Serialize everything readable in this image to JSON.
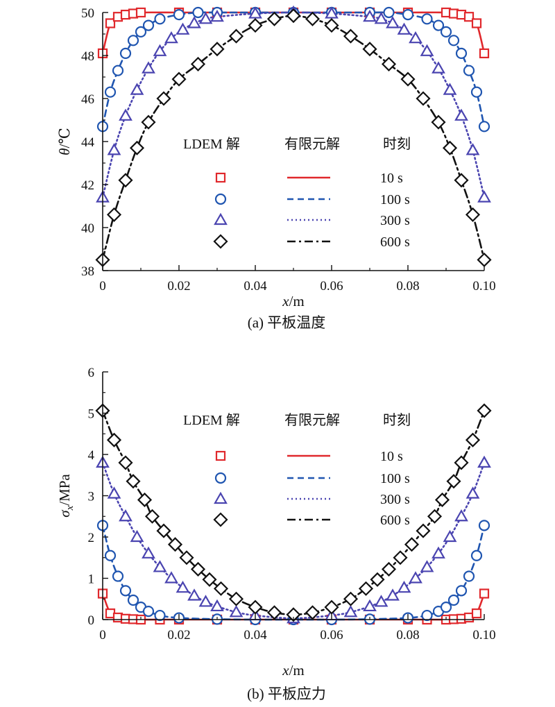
{
  "chart_data": [
    {
      "type": "line",
      "caption": "(a) 平板温度",
      "xlabel_var": "x",
      "xlabel_unit": "/m",
      "ylabel_var": "θ",
      "ylabel_unit": "/℃",
      "xlim": [
        0,
        0.1
      ],
      "ylim": [
        38,
        50
      ],
      "x_ticks": [
        "0",
        "0.02",
        "0.04",
        "0.06",
        "0.08",
        "0.10"
      ],
      "y_ticks": [
        "38",
        "40",
        "42",
        "44",
        "46",
        "48",
        "50"
      ],
      "legend": {
        "headers": [
          "LDEM 解",
          "有限元解",
          "时刻"
        ],
        "entries": [
          "10 s",
          "100 s",
          "300 s",
          "600 s"
        ]
      },
      "series": [
        {
          "name": "10 s",
          "color": "#e0282c",
          "marker": "square",
          "line": "solid",
          "x": [
            0.0,
            0.002,
            0.004,
            0.006,
            0.008,
            0.01,
            0.02,
            0.03,
            0.04,
            0.05,
            0.06,
            0.07,
            0.08,
            0.09,
            0.092,
            0.094,
            0.096,
            0.098,
            0.1
          ],
          "y": [
            48.1,
            49.5,
            49.8,
            49.9,
            49.95,
            50.0,
            50.0,
            50.0,
            50.0,
            50.0,
            50.0,
            50.0,
            50.0,
            50.0,
            49.95,
            49.9,
            49.8,
            49.5,
            48.1
          ]
        },
        {
          "name": "100 s",
          "color": "#1f55b0",
          "marker": "circle",
          "line": "dash",
          "x": [
            0.0,
            0.002,
            0.004,
            0.006,
            0.008,
            0.01,
            0.012,
            0.015,
            0.02,
            0.025,
            0.03,
            0.04,
            0.05,
            0.06,
            0.07,
            0.075,
            0.08,
            0.085,
            0.088,
            0.09,
            0.092,
            0.094,
            0.096,
            0.098,
            0.1
          ],
          "y": [
            44.7,
            46.3,
            47.3,
            48.1,
            48.7,
            49.1,
            49.4,
            49.7,
            49.9,
            50.0,
            50.0,
            50.0,
            50.0,
            50.0,
            50.0,
            50.0,
            49.9,
            49.7,
            49.4,
            49.1,
            48.7,
            48.1,
            47.3,
            46.3,
            44.7
          ]
        },
        {
          "name": "300 s",
          "color": "#4a44b0",
          "marker": "triangle",
          "line": "dot",
          "x": [
            0.0,
            0.003,
            0.006,
            0.009,
            0.012,
            0.015,
            0.018,
            0.021,
            0.024,
            0.027,
            0.03,
            0.04,
            0.05,
            0.06,
            0.07,
            0.073,
            0.076,
            0.079,
            0.082,
            0.085,
            0.088,
            0.091,
            0.094,
            0.097,
            0.1
          ],
          "y": [
            41.4,
            43.6,
            45.2,
            46.4,
            47.4,
            48.2,
            48.8,
            49.2,
            49.5,
            49.7,
            49.8,
            49.95,
            50.0,
            49.95,
            49.8,
            49.7,
            49.5,
            49.2,
            48.8,
            48.2,
            47.4,
            46.4,
            45.2,
            43.6,
            41.4
          ]
        },
        {
          "name": "600 s",
          "color": "#111111",
          "marker": "diamond",
          "line": "dashdot",
          "x": [
            0.0,
            0.003,
            0.006,
            0.009,
            0.012,
            0.016,
            0.02,
            0.025,
            0.03,
            0.035,
            0.04,
            0.045,
            0.05,
            0.055,
            0.06,
            0.065,
            0.07,
            0.075,
            0.08,
            0.084,
            0.088,
            0.091,
            0.094,
            0.097,
            0.1
          ],
          "y": [
            38.5,
            40.6,
            42.2,
            43.7,
            44.9,
            46.0,
            46.9,
            47.6,
            48.3,
            48.9,
            49.4,
            49.7,
            49.85,
            49.7,
            49.4,
            48.9,
            48.3,
            47.6,
            46.9,
            46.0,
            44.9,
            43.7,
            42.2,
            40.6,
            38.5
          ]
        }
      ]
    },
    {
      "type": "line",
      "caption": "(b) 平板应力",
      "xlabel_var": "x",
      "xlabel_unit": "/m",
      "ylabel_var": "σ",
      "ylabel_sub": "x",
      "ylabel_unit": "/MPa",
      "xlim": [
        0,
        0.1
      ],
      "ylim": [
        0,
        6
      ],
      "x_ticks": [
        "0",
        "0.02",
        "0.04",
        "0.06",
        "0.08",
        "0.10"
      ],
      "y_ticks": [
        "0",
        "1",
        "2",
        "3",
        "4",
        "5",
        "6"
      ],
      "legend": {
        "headers": [
          "LDEM 解",
          "有限元解",
          "时刻"
        ],
        "entries": [
          "10 s",
          "100 s",
          "300 s",
          "600 s"
        ]
      },
      "series": [
        {
          "name": "10 s",
          "color": "#e0282c",
          "marker": "square",
          "line": "solid",
          "x": [
            0.0,
            0.002,
            0.004,
            0.006,
            0.008,
            0.01,
            0.015,
            0.02,
            0.03,
            0.04,
            0.05,
            0.06,
            0.07,
            0.08,
            0.085,
            0.09,
            0.092,
            0.094,
            0.096,
            0.098,
            0.1
          ],
          "y": [
            0.63,
            0.15,
            0.05,
            0.02,
            0.01,
            0.0,
            0.0,
            0.0,
            0.0,
            0.0,
            0.0,
            0.0,
            0.0,
            0.0,
            0.0,
            0.0,
            0.01,
            0.02,
            0.05,
            0.15,
            0.63
          ]
        },
        {
          "name": "100 s",
          "color": "#1f55b0",
          "marker": "circle",
          "line": "dash",
          "x": [
            0.0,
            0.002,
            0.004,
            0.006,
            0.008,
            0.01,
            0.012,
            0.015,
            0.02,
            0.03,
            0.04,
            0.05,
            0.06,
            0.07,
            0.08,
            0.085,
            0.088,
            0.09,
            0.092,
            0.094,
            0.096,
            0.098,
            0.1
          ],
          "y": [
            2.28,
            1.55,
            1.05,
            0.7,
            0.47,
            0.3,
            0.2,
            0.1,
            0.04,
            0.01,
            0.0,
            0.0,
            0.0,
            0.01,
            0.04,
            0.1,
            0.2,
            0.3,
            0.47,
            0.7,
            1.05,
            1.55,
            2.28
          ]
        },
        {
          "name": "300 s",
          "color": "#4a44b0",
          "marker": "triangle",
          "line": "dot",
          "x": [
            0.0,
            0.003,
            0.006,
            0.009,
            0.012,
            0.015,
            0.018,
            0.021,
            0.024,
            0.027,
            0.03,
            0.035,
            0.04,
            0.05,
            0.06,
            0.065,
            0.07,
            0.073,
            0.076,
            0.079,
            0.082,
            0.085,
            0.088,
            0.091,
            0.094,
            0.097,
            0.1
          ],
          "y": [
            3.8,
            3.05,
            2.5,
            2.0,
            1.6,
            1.27,
            1.0,
            0.77,
            0.58,
            0.43,
            0.32,
            0.18,
            0.1,
            0.03,
            0.1,
            0.18,
            0.32,
            0.43,
            0.58,
            0.77,
            1.0,
            1.27,
            1.6,
            2.0,
            2.5,
            3.05,
            3.8
          ]
        },
        {
          "name": "600 s",
          "color": "#111111",
          "marker": "diamond",
          "line": "dashdot",
          "x": [
            0.0,
            0.003,
            0.006,
            0.008,
            0.011,
            0.013,
            0.016,
            0.019,
            0.022,
            0.025,
            0.028,
            0.031,
            0.035,
            0.04,
            0.045,
            0.05,
            0.055,
            0.06,
            0.065,
            0.069,
            0.072,
            0.075,
            0.078,
            0.081,
            0.084,
            0.087,
            0.089,
            0.092,
            0.094,
            0.097,
            0.1
          ],
          "y": [
            5.06,
            4.35,
            3.8,
            3.35,
            2.9,
            2.5,
            2.15,
            1.82,
            1.5,
            1.22,
            0.97,
            0.75,
            0.5,
            0.3,
            0.17,
            0.12,
            0.17,
            0.3,
            0.5,
            0.75,
            0.97,
            1.22,
            1.5,
            1.82,
            2.15,
            2.5,
            2.9,
            3.35,
            3.8,
            4.35,
            5.06
          ]
        }
      ]
    }
  ]
}
